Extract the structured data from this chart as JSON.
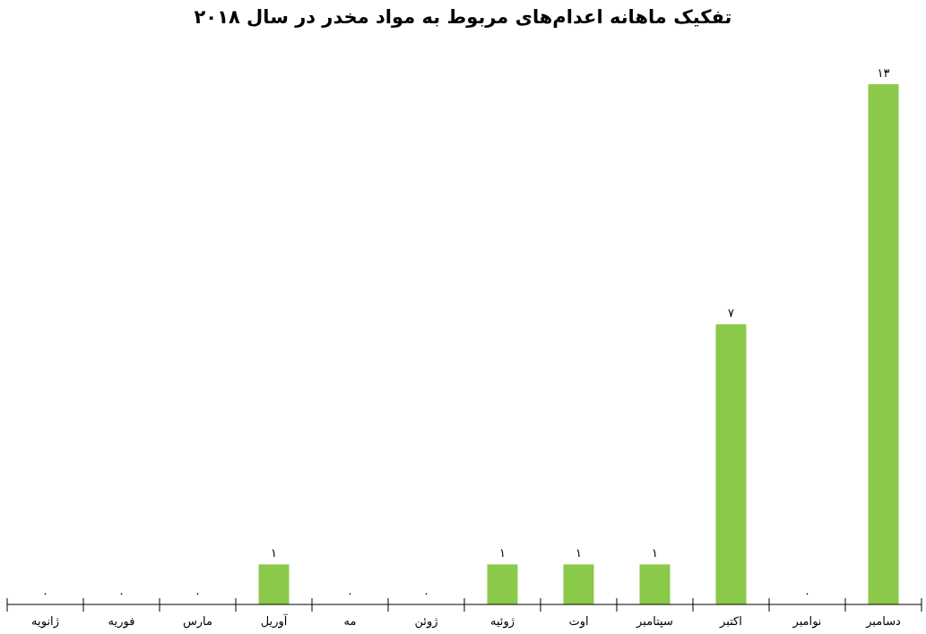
{
  "chart_data": {
    "type": "bar",
    "title": "تفکیک ماهانه اعدام‌های مربوط به مواد مخدر در سال ۲۰۱۸",
    "categories": [
      "ژانویه",
      "فوریه",
      "مارس",
      "آوریل",
      "مه",
      "ژوئن",
      "ژوئیه",
      "اوت",
      "سپتامبر",
      "اکتبر",
      "نوامبر",
      "دسامبر"
    ],
    "values": [
      0,
      0,
      0,
      1,
      0,
      0,
      1,
      1,
      1,
      7,
      0,
      13
    ],
    "value_labels": [
      "۰",
      "۰",
      "۰",
      "۱",
      "۰",
      "۰",
      "۱",
      "۱",
      "۱",
      "۷",
      "۰",
      "۱۳"
    ],
    "color": "#8bc94a",
    "tick_labels": "x"
  }
}
